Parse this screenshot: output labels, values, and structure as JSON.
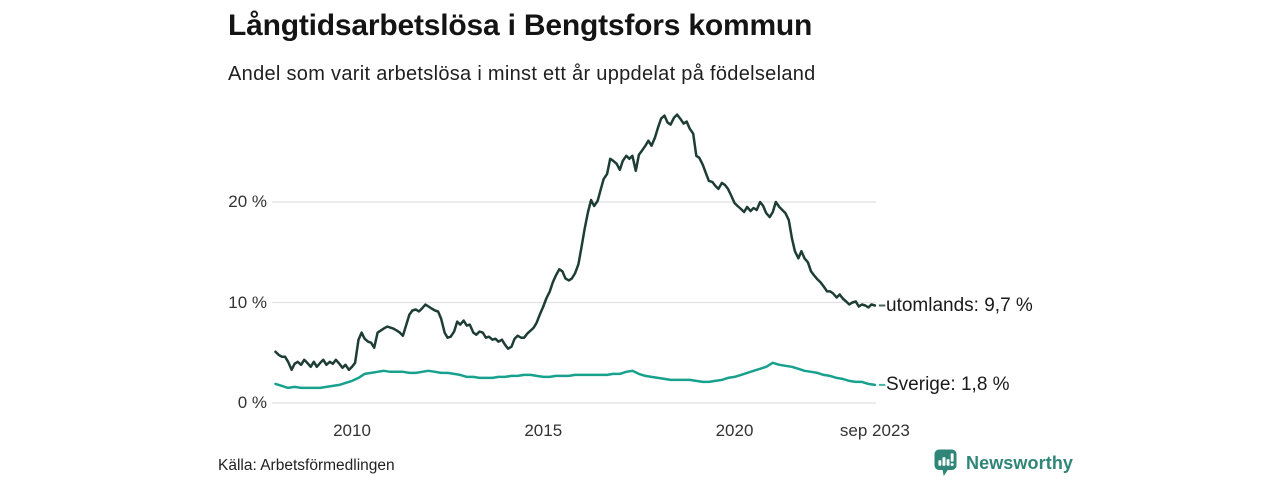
{
  "header": {
    "title": "Långtidsarbetslösa i Bengtsfors kommun",
    "subtitle": "Andel som varit arbetslösa i minst ett år uppdelat på födelseland"
  },
  "footer": {
    "source": "Källa: Arbetsförmedlingen",
    "brand_name": "Newsworthy",
    "brand_color": "#2e8578",
    "brand_icon": "bar-chart-speech-bubble-icon"
  },
  "chart_data": {
    "type": "line",
    "title": "Långtidsarbetslösa i Bengtsfors kommun",
    "subtitle": "Andel som varit arbetslösa i minst ett år uppdelat på födelseland",
    "grid": true,
    "grid_color": "#e1e1e1",
    "legend_position": "right-end-labels",
    "x_axis": {
      "range_years": [
        2008.0,
        2023.75
      ],
      "ticks": [
        {
          "label": "2010",
          "year": 2010
        },
        {
          "label": "2015",
          "year": 2015
        },
        {
          "label": "2020",
          "year": 2020
        },
        {
          "label": "sep 2023",
          "year": 2023.67
        }
      ]
    },
    "y_axis": {
      "unit": "%",
      "range": [
        0,
        29.5
      ],
      "ticks": [
        {
          "label": "20 %",
          "value": 20
        },
        {
          "label": "10 %",
          "value": 10
        },
        {
          "label": "0 %",
          "value": 0
        }
      ]
    },
    "series": [
      {
        "name": "utomlands",
        "end_label": "utomlands: 9,7 %",
        "end_value_pct": 9.7,
        "color": "#1e3d35",
        "points": [
          [
            2008.0,
            5.1
          ],
          [
            2008.08,
            4.8
          ],
          [
            2008.17,
            4.6
          ],
          [
            2008.25,
            4.6
          ],
          [
            2008.33,
            4.1
          ],
          [
            2008.42,
            3.3
          ],
          [
            2008.5,
            3.9
          ],
          [
            2008.58,
            4.1
          ],
          [
            2008.67,
            3.8
          ],
          [
            2008.75,
            4.3
          ],
          [
            2008.83,
            4.0
          ],
          [
            2008.92,
            3.6
          ],
          [
            2009.0,
            4.1
          ],
          [
            2009.08,
            3.6
          ],
          [
            2009.17,
            4.0
          ],
          [
            2009.25,
            4.3
          ],
          [
            2009.33,
            3.8
          ],
          [
            2009.42,
            4.1
          ],
          [
            2009.5,
            3.9
          ],
          [
            2009.58,
            4.3
          ],
          [
            2009.67,
            3.9
          ],
          [
            2009.75,
            3.5
          ],
          [
            2009.83,
            3.8
          ],
          [
            2009.92,
            3.3
          ],
          [
            2010.0,
            3.6
          ],
          [
            2010.08,
            4.0
          ],
          [
            2010.17,
            6.3
          ],
          [
            2010.25,
            7.0
          ],
          [
            2010.33,
            6.4
          ],
          [
            2010.42,
            6.1
          ],
          [
            2010.5,
            6.0
          ],
          [
            2010.58,
            5.5
          ],
          [
            2010.67,
            7.0
          ],
          [
            2010.75,
            7.2
          ],
          [
            2010.83,
            7.4
          ],
          [
            2010.92,
            7.6
          ],
          [
            2011.0,
            7.5
          ],
          [
            2011.08,
            7.4
          ],
          [
            2011.17,
            7.2
          ],
          [
            2011.25,
            7.0
          ],
          [
            2011.33,
            6.7
          ],
          [
            2011.42,
            7.8
          ],
          [
            2011.5,
            8.8
          ],
          [
            2011.58,
            9.2
          ],
          [
            2011.67,
            9.3
          ],
          [
            2011.75,
            9.1
          ],
          [
            2011.83,
            9.4
          ],
          [
            2011.92,
            9.8
          ],
          [
            2012.0,
            9.6
          ],
          [
            2012.08,
            9.4
          ],
          [
            2012.17,
            9.2
          ],
          [
            2012.25,
            9.1
          ],
          [
            2012.33,
            8.4
          ],
          [
            2012.42,
            7.0
          ],
          [
            2012.5,
            6.5
          ],
          [
            2012.58,
            6.6
          ],
          [
            2012.67,
            7.1
          ],
          [
            2012.75,
            8.1
          ],
          [
            2012.83,
            7.8
          ],
          [
            2012.92,
            8.2
          ],
          [
            2013.0,
            7.7
          ],
          [
            2013.08,
            7.8
          ],
          [
            2013.17,
            7.0
          ],
          [
            2013.25,
            6.8
          ],
          [
            2013.33,
            7.1
          ],
          [
            2013.42,
            7.0
          ],
          [
            2013.5,
            6.5
          ],
          [
            2013.58,
            6.6
          ],
          [
            2013.67,
            6.3
          ],
          [
            2013.75,
            6.4
          ],
          [
            2013.83,
            6.1
          ],
          [
            2013.92,
            6.3
          ],
          [
            2014.0,
            5.8
          ],
          [
            2014.08,
            5.4
          ],
          [
            2014.17,
            5.6
          ],
          [
            2014.25,
            6.4
          ],
          [
            2014.33,
            6.7
          ],
          [
            2014.42,
            6.5
          ],
          [
            2014.5,
            6.5
          ],
          [
            2014.58,
            6.9
          ],
          [
            2014.67,
            7.2
          ],
          [
            2014.75,
            7.5
          ],
          [
            2014.83,
            8.0
          ],
          [
            2014.92,
            8.9
          ],
          [
            2015.0,
            9.6
          ],
          [
            2015.08,
            10.4
          ],
          [
            2015.17,
            11.1
          ],
          [
            2015.25,
            12.0
          ],
          [
            2015.33,
            12.7
          ],
          [
            2015.42,
            13.3
          ],
          [
            2015.5,
            13.1
          ],
          [
            2015.58,
            12.4
          ],
          [
            2015.67,
            12.2
          ],
          [
            2015.75,
            12.4
          ],
          [
            2015.83,
            12.9
          ],
          [
            2015.92,
            13.8
          ],
          [
            2016.0,
            15.5
          ],
          [
            2016.08,
            17.3
          ],
          [
            2016.17,
            19.0
          ],
          [
            2016.25,
            20.2
          ],
          [
            2016.33,
            19.6
          ],
          [
            2016.42,
            20.1
          ],
          [
            2016.5,
            21.2
          ],
          [
            2016.58,
            22.3
          ],
          [
            2016.67,
            22.8
          ],
          [
            2016.75,
            24.3
          ],
          [
            2016.83,
            24.1
          ],
          [
            2016.92,
            23.8
          ],
          [
            2017.0,
            23.2
          ],
          [
            2017.08,
            24.1
          ],
          [
            2017.17,
            24.6
          ],
          [
            2017.25,
            24.3
          ],
          [
            2017.33,
            24.6
          ],
          [
            2017.42,
            23.1
          ],
          [
            2017.5,
            24.7
          ],
          [
            2017.58,
            25.1
          ],
          [
            2017.67,
            25.6
          ],
          [
            2017.75,
            26.1
          ],
          [
            2017.83,
            25.6
          ],
          [
            2017.92,
            26.4
          ],
          [
            2018.0,
            27.4
          ],
          [
            2018.08,
            28.3
          ],
          [
            2018.17,
            28.6
          ],
          [
            2018.25,
            27.9
          ],
          [
            2018.33,
            27.7
          ],
          [
            2018.42,
            28.4
          ],
          [
            2018.5,
            28.7
          ],
          [
            2018.58,
            28.3
          ],
          [
            2018.67,
            27.8
          ],
          [
            2018.75,
            28.0
          ],
          [
            2018.83,
            27.3
          ],
          [
            2018.92,
            26.8
          ],
          [
            2019.0,
            24.6
          ],
          [
            2019.08,
            24.4
          ],
          [
            2019.17,
            23.7
          ],
          [
            2019.25,
            22.9
          ],
          [
            2019.33,
            22.1
          ],
          [
            2019.42,
            22.0
          ],
          [
            2019.5,
            21.6
          ],
          [
            2019.58,
            21.3
          ],
          [
            2019.67,
            21.9
          ],
          [
            2019.75,
            21.7
          ],
          [
            2019.83,
            21.3
          ],
          [
            2019.92,
            20.6
          ],
          [
            2020.0,
            19.9
          ],
          [
            2020.08,
            19.6
          ],
          [
            2020.17,
            19.3
          ],
          [
            2020.25,
            19.0
          ],
          [
            2020.33,
            19.5
          ],
          [
            2020.42,
            19.1
          ],
          [
            2020.5,
            19.4
          ],
          [
            2020.58,
            19.2
          ],
          [
            2020.67,
            20.0
          ],
          [
            2020.75,
            19.6
          ],
          [
            2020.83,
            18.9
          ],
          [
            2020.92,
            18.5
          ],
          [
            2021.0,
            19.0
          ],
          [
            2021.08,
            20.0
          ],
          [
            2021.17,
            19.5
          ],
          [
            2021.25,
            19.2
          ],
          [
            2021.33,
            18.9
          ],
          [
            2021.42,
            18.2
          ],
          [
            2021.5,
            16.4
          ],
          [
            2021.58,
            15.1
          ],
          [
            2021.67,
            14.4
          ],
          [
            2021.75,
            15.1
          ],
          [
            2021.83,
            14.4
          ],
          [
            2021.92,
            14.0
          ],
          [
            2022.0,
            13.1
          ],
          [
            2022.08,
            12.7
          ],
          [
            2022.17,
            12.3
          ],
          [
            2022.25,
            12.0
          ],
          [
            2022.33,
            11.6
          ],
          [
            2022.42,
            11.1
          ],
          [
            2022.5,
            11.1
          ],
          [
            2022.58,
            10.9
          ],
          [
            2022.67,
            10.5
          ],
          [
            2022.75,
            10.8
          ],
          [
            2022.83,
            10.4
          ],
          [
            2022.92,
            10.1
          ],
          [
            2023.0,
            9.8
          ],
          [
            2023.08,
            10.0
          ],
          [
            2023.17,
            10.1
          ],
          [
            2023.25,
            9.6
          ],
          [
            2023.33,
            9.8
          ],
          [
            2023.42,
            9.7
          ],
          [
            2023.5,
            9.5
          ],
          [
            2023.58,
            9.8
          ],
          [
            2023.67,
            9.7
          ]
        ]
      },
      {
        "name": "Sverige",
        "end_label": "Sverige: 1,8 %",
        "end_value_pct": 1.8,
        "color": "#18a18d",
        "points": [
          [
            2008.0,
            1.9
          ],
          [
            2008.17,
            1.7
          ],
          [
            2008.33,
            1.5
          ],
          [
            2008.5,
            1.6
          ],
          [
            2008.67,
            1.5
          ],
          [
            2008.83,
            1.5
          ],
          [
            2009.0,
            1.5
          ],
          [
            2009.17,
            1.5
          ],
          [
            2009.33,
            1.6
          ],
          [
            2009.5,
            1.7
          ],
          [
            2009.67,
            1.8
          ],
          [
            2009.83,
            2.0
          ],
          [
            2010.0,
            2.2
          ],
          [
            2010.17,
            2.5
          ],
          [
            2010.33,
            2.9
          ],
          [
            2010.5,
            3.0
          ],
          [
            2010.67,
            3.1
          ],
          [
            2010.83,
            3.2
          ],
          [
            2011.0,
            3.1
          ],
          [
            2011.17,
            3.1
          ],
          [
            2011.33,
            3.1
          ],
          [
            2011.5,
            3.0
          ],
          [
            2011.67,
            3.0
          ],
          [
            2011.83,
            3.1
          ],
          [
            2012.0,
            3.2
          ],
          [
            2012.17,
            3.1
          ],
          [
            2012.33,
            3.0
          ],
          [
            2012.5,
            3.0
          ],
          [
            2012.67,
            2.9
          ],
          [
            2012.83,
            2.8
          ],
          [
            2013.0,
            2.6
          ],
          [
            2013.17,
            2.6
          ],
          [
            2013.33,
            2.5
          ],
          [
            2013.5,
            2.5
          ],
          [
            2013.67,
            2.5
          ],
          [
            2013.83,
            2.6
          ],
          [
            2014.0,
            2.6
          ],
          [
            2014.17,
            2.7
          ],
          [
            2014.33,
            2.7
          ],
          [
            2014.5,
            2.8
          ],
          [
            2014.67,
            2.8
          ],
          [
            2014.83,
            2.7
          ],
          [
            2015.0,
            2.6
          ],
          [
            2015.17,
            2.6
          ],
          [
            2015.33,
            2.7
          ],
          [
            2015.5,
            2.7
          ],
          [
            2015.67,
            2.7
          ],
          [
            2015.83,
            2.8
          ],
          [
            2016.0,
            2.8
          ],
          [
            2016.17,
            2.8
          ],
          [
            2016.33,
            2.8
          ],
          [
            2016.5,
            2.8
          ],
          [
            2016.67,
            2.8
          ],
          [
            2016.83,
            2.9
          ],
          [
            2017.0,
            2.9
          ],
          [
            2017.17,
            3.1
          ],
          [
            2017.33,
            3.2
          ],
          [
            2017.5,
            2.9
          ],
          [
            2017.67,
            2.7
          ],
          [
            2017.83,
            2.6
          ],
          [
            2018.0,
            2.5
          ],
          [
            2018.17,
            2.4
          ],
          [
            2018.33,
            2.3
          ],
          [
            2018.5,
            2.3
          ],
          [
            2018.67,
            2.3
          ],
          [
            2018.83,
            2.3
          ],
          [
            2019.0,
            2.2
          ],
          [
            2019.17,
            2.1
          ],
          [
            2019.33,
            2.1
          ],
          [
            2019.5,
            2.2
          ],
          [
            2019.67,
            2.3
          ],
          [
            2019.83,
            2.5
          ],
          [
            2020.0,
            2.6
          ],
          [
            2020.17,
            2.8
          ],
          [
            2020.33,
            3.0
          ],
          [
            2020.5,
            3.2
          ],
          [
            2020.67,
            3.4
          ],
          [
            2020.83,
            3.6
          ],
          [
            2021.0,
            4.0
          ],
          [
            2021.17,
            3.8
          ],
          [
            2021.33,
            3.7
          ],
          [
            2021.5,
            3.6
          ],
          [
            2021.67,
            3.4
          ],
          [
            2021.83,
            3.2
          ],
          [
            2022.0,
            3.1
          ],
          [
            2022.17,
            3.0
          ],
          [
            2022.33,
            2.8
          ],
          [
            2022.5,
            2.7
          ],
          [
            2022.67,
            2.5
          ],
          [
            2022.83,
            2.4
          ],
          [
            2023.0,
            2.2
          ],
          [
            2023.17,
            2.1
          ],
          [
            2023.33,
            2.1
          ],
          [
            2023.5,
            1.9
          ],
          [
            2023.67,
            1.8
          ]
        ]
      }
    ]
  }
}
